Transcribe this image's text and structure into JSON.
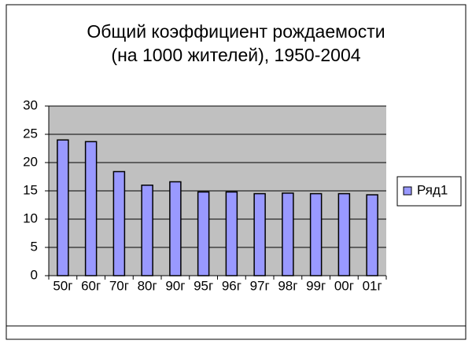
{
  "chart_data": {
    "type": "bar",
    "title": "Общий коэффициент рождаемости",
    "subtitle": "(на 1000 жителей), 1950-2004",
    "categories": [
      "50г",
      "60г",
      "70г",
      "80г",
      "90г",
      "95г",
      "96г",
      "97г",
      "98г",
      "99г",
      "00г",
      "01г"
    ],
    "series": [
      {
        "name": "Ряд1",
        "color": "#9999ff",
        "values": [
          24,
          23.7,
          18.4,
          16,
          16.6,
          14.8,
          14.8,
          14.5,
          14.6,
          14.5,
          14.5,
          14.3
        ]
      }
    ],
    "ylim": [
      0,
      30
    ],
    "yticks": [
      0,
      5,
      10,
      15,
      20,
      25,
      30
    ],
    "grid": true,
    "legend": "right"
  }
}
